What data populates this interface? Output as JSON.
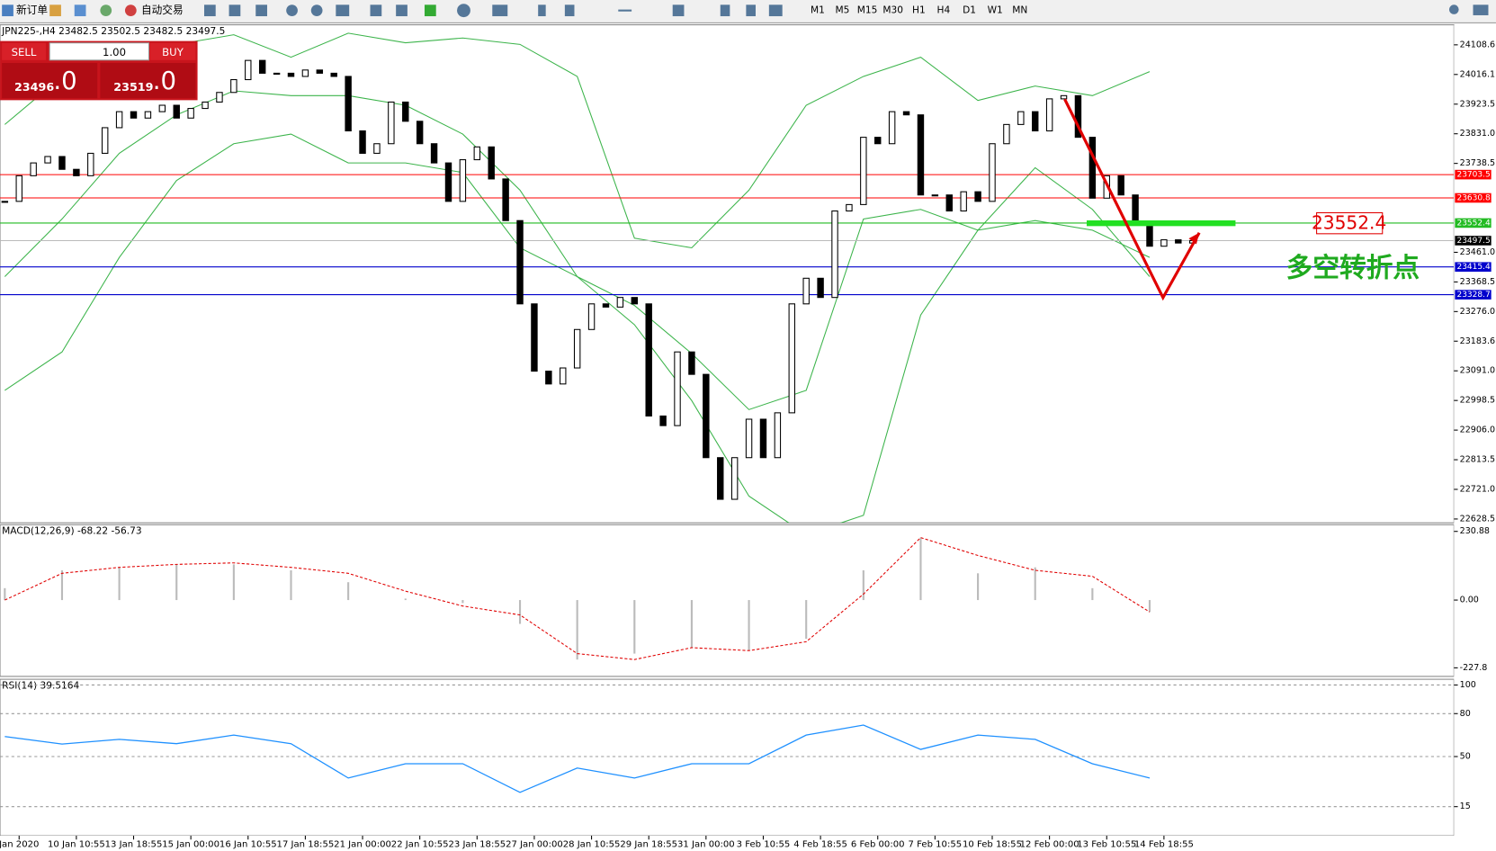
{
  "toolbar": {
    "new_order": "新订单",
    "auto_trading": "自动交易",
    "timeframes": [
      "M1",
      "M5",
      "M15",
      "M30",
      "H1",
      "H4",
      "D1",
      "W1",
      "MN"
    ]
  },
  "trade_panel": {
    "sell": "SELL",
    "buy": "BUY",
    "lot": "1.00",
    "bid_main": "23496",
    "bid_small": ".0",
    "ask_main": "23519",
    "ask_small": ".0"
  },
  "x_labels": [
    "Jan 2020",
    "10 Jan 10:55",
    "13 Jan 18:55",
    "15 Jan 00:00",
    "16 Jan 10:55",
    "17 Jan 18:55",
    "21 Jan 00:00",
    "22 Jan 10:55",
    "23 Jan 18:55",
    "27 Jan 00:00",
    "28 Jan 10:55",
    "29 Jan 18:55",
    "31 Jan 00:00",
    "3 Feb 10:55",
    "4 Feb 18:55",
    "6 Feb 00:00",
    "7 Feb 10:55",
    "10 Feb 18:55",
    "12 Feb 00:00",
    "13 Feb 10:55",
    "14 Feb 18:55"
  ],
  "chart_data": [
    {
      "type": "candlestick",
      "header": "JPN225-,H4 23482.5 23502.5 23482.5 23497.5",
      "closes": [
        23620,
        23700,
        23740,
        23760,
        23720,
        23700,
        23770,
        23850,
        23900,
        23880,
        23900,
        23920,
        23880,
        23910,
        23930,
        23960,
        24000,
        24060,
        24020,
        24020,
        24010,
        24030,
        24020,
        24010,
        23840,
        23770,
        23800,
        23930,
        23870,
        23800,
        23740,
        23620,
        23750,
        23790,
        23690,
        23560,
        23300,
        23090,
        23050,
        23100,
        23220,
        23300,
        23290,
        23320,
        23300,
        22950,
        22920,
        23150,
        23080,
        22820,
        22690,
        22820,
        22940,
        22820,
        22960,
        23300,
        23380,
        23320,
        23590,
        23610,
        23820,
        23800,
        23900,
        23890,
        23640,
        23640,
        23590,
        23650,
        23620,
        23800,
        23860,
        23900,
        23840,
        23940,
        23950,
        23820,
        23630,
        23700,
        23640,
        23550,
        23480,
        23500,
        23490,
        23497.5
      ],
      "bands": {
        "color": "#3cb44b",
        "upper": [
          23860,
          24010,
          24085,
          24110,
          24140,
          24070,
          24145,
          24115,
          24130,
          24110,
          24010,
          23505,
          23475,
          23655,
          23920,
          24010,
          24070,
          23935,
          23980,
          23950,
          24025
        ],
        "middle": [
          23385,
          23565,
          23770,
          23890,
          23965,
          23950,
          23950,
          23920,
          23830,
          23655,
          23385,
          23295,
          23145,
          22970,
          23030,
          23565,
          23595,
          23530,
          23725,
          23595,
          23385
        ],
        "lower": [
          23030,
          23150,
          23445,
          23685,
          23800,
          23830,
          23740,
          23740,
          23710,
          23475,
          23385,
          23235,
          22998,
          22700,
          22580,
          22640,
          23265,
          23530,
          23560,
          23530,
          23445
        ]
      },
      "ylim": [
        22628.5,
        24108.6
      ],
      "yticks": [
        24108.6,
        24016.1,
        23923.5,
        {
          "value": 23831,
          "label": "23831.0"
        },
        23738.5,
        {
          "value": 23461,
          "label": "23461.0"
        },
        23368.5,
        {
          "value": 23276,
          "label": "23276.0"
        },
        23183.6,
        {
          "value": 23091,
          "label": "23091.0"
        },
        22998.5,
        {
          "value": 22906,
          "label": "22906.0"
        },
        22813.5,
        {
          "value": 22721,
          "label": "22721.0"
        },
        22628.5
      ],
      "levels": [
        {
          "value": 23703.5,
          "color": "#ff0000"
        },
        {
          "value": 23630.8,
          "color": "#ff0000"
        },
        {
          "value": 23552.4,
          "color": "#22bb22"
        },
        {
          "value": 23415.4,
          "color": "#0000cc"
        },
        {
          "value": 23328.7,
          "color": "#0000cc"
        }
      ],
      "current": 23497.5,
      "annotation": {
        "price": "23552.4",
        "text": "多空转折点"
      }
    },
    {
      "type": "macd",
      "label": "MACD(12,26,9) -68.22 -56.73",
      "histogram": [
        40,
        100,
        110,
        120,
        120,
        100,
        60,
        5,
        -10,
        -80,
        -200,
        -180,
        -160,
        -170,
        -130,
        100,
        210,
        90,
        110,
        40,
        -40
      ],
      "signal": [
        0,
        90,
        110,
        120,
        125,
        110,
        90,
        30,
        -20,
        -50,
        -180,
        -200,
        -160,
        -170,
        -140,
        20,
        210,
        150,
        100,
        80,
        -40
      ],
      "ylim": [
        -227.8,
        230.88
      ],
      "yticks": [
        230.88,
        {
          "value": 0,
          "label": "0.00"
        },
        -227.8
      ]
    },
    {
      "type": "line",
      "label": "RSI(14) 39.5164",
      "color": "#1e90ff",
      "values": [
        64,
        58.7,
        62,
        59,
        65,
        59,
        35,
        45,
        45,
        25,
        42,
        35,
        45,
        45,
        65,
        72,
        55,
        65,
        62,
        45,
        35
      ],
      "ylim": [
        0,
        100
      ],
      "yticks": [
        100,
        80,
        50,
        15
      ],
      "grid": true
    }
  ]
}
